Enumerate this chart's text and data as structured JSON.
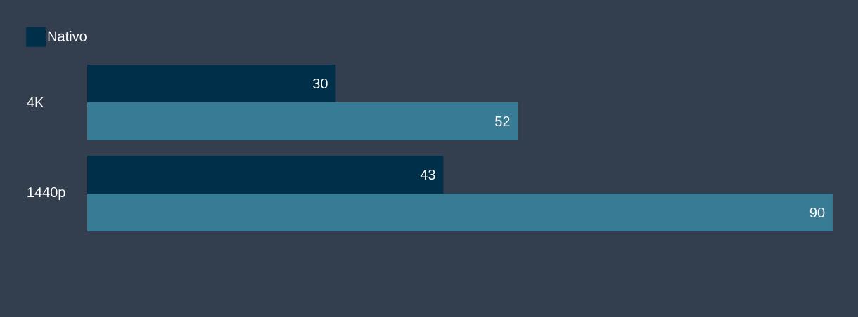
{
  "chart_data": {
    "type": "bar",
    "orientation": "horizontal",
    "categories": [
      "4K",
      "1440p"
    ],
    "series": [
      {
        "name": "Nativo",
        "color": "#003049",
        "values": [
          30,
          43
        ]
      },
      {
        "color": "#387b94",
        "values": [
          52,
          90
        ]
      }
    ],
    "xlim": [
      0,
      90
    ],
    "data_labels": true,
    "legend": "top left",
    "tick_labels": "y"
  }
}
